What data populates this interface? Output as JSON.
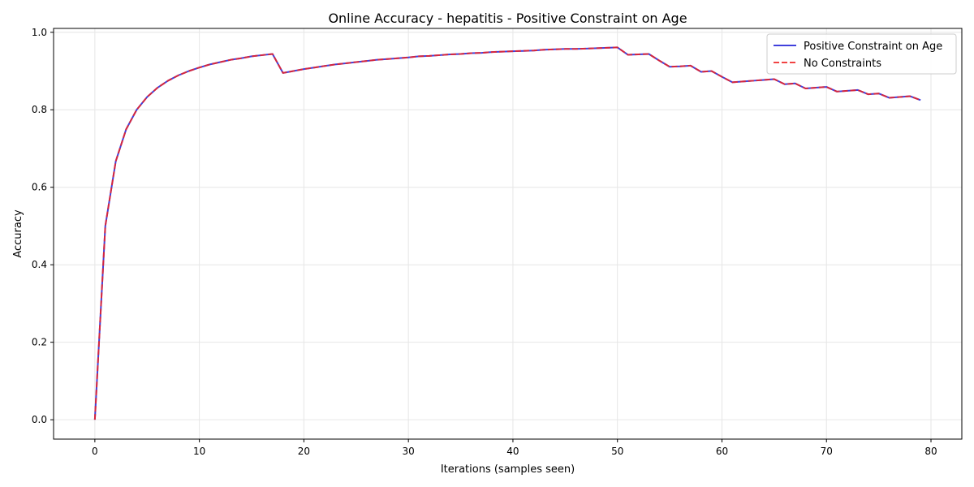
{
  "chart_data": {
    "type": "line",
    "title": "Online Accuracy - hepatitis - Positive Constraint on Age",
    "xlabel": "Iterations (samples seen)",
    "ylabel": "Accuracy",
    "xlim": [
      -3.95,
      82.95
    ],
    "ylim": [
      -0.05,
      1.01
    ],
    "xticks": [
      0,
      10,
      20,
      30,
      40,
      50,
      60,
      70,
      80
    ],
    "yticks": [
      0.0,
      0.2,
      0.4,
      0.6,
      0.8,
      1.0
    ],
    "xtick_labels": [
      "0",
      "10",
      "20",
      "30",
      "40",
      "50",
      "60",
      "70",
      "80"
    ],
    "ytick_labels": [
      "0.0",
      "0.2",
      "0.4",
      "0.6",
      "0.8",
      "1.0"
    ],
    "grid": true,
    "legend_position": "top-right",
    "x": [
      0,
      1,
      2,
      3,
      4,
      5,
      6,
      7,
      8,
      9,
      10,
      11,
      12,
      13,
      14,
      15,
      16,
      17,
      18,
      19,
      20,
      21,
      22,
      23,
      24,
      25,
      26,
      27,
      28,
      29,
      30,
      31,
      32,
      33,
      34,
      35,
      36,
      37,
      38,
      39,
      40,
      41,
      42,
      43,
      44,
      45,
      46,
      47,
      48,
      49,
      50,
      51,
      52,
      53,
      54,
      55,
      56,
      57,
      58,
      59,
      60,
      61,
      62,
      63,
      64,
      65,
      66,
      67,
      68,
      69,
      70,
      71,
      72,
      73,
      74,
      75,
      76,
      77,
      78,
      79
    ],
    "series": [
      {
        "name": "Positive Constraint on Age",
        "color": "#1f1fd6",
        "style": "solid",
        "values": [
          0.0,
          0.5,
          0.667,
          0.75,
          0.8,
          0.833,
          0.857,
          0.875,
          0.889,
          0.9,
          0.909,
          0.917,
          0.923,
          0.929,
          0.933,
          0.938,
          0.941,
          0.944,
          0.895,
          0.9,
          0.905,
          0.909,
          0.913,
          0.917,
          0.92,
          0.923,
          0.926,
          0.929,
          0.931,
          0.933,
          0.935,
          0.938,
          0.939,
          0.941,
          0.943,
          0.944,
          0.946,
          0.947,
          0.949,
          0.95,
          0.951,
          0.952,
          0.953,
          0.955,
          0.956,
          0.957,
          0.957,
          0.958,
          0.959,
          0.96,
          0.961,
          0.942,
          0.943,
          0.944,
          0.927,
          0.911,
          0.912,
          0.914,
          0.898,
          0.9,
          0.885,
          0.871,
          0.873,
          0.875,
          0.877,
          0.879,
          0.866,
          0.868,
          0.855,
          0.857,
          0.859,
          0.847,
          0.849,
          0.851,
          0.84,
          0.842,
          0.831,
          0.833,
          0.835,
          0.825
        ]
      },
      {
        "name": "No Constraints",
        "color": "#ee2222",
        "style": "dashed",
        "values": [
          0.0,
          0.5,
          0.667,
          0.75,
          0.8,
          0.833,
          0.857,
          0.875,
          0.889,
          0.9,
          0.909,
          0.917,
          0.923,
          0.929,
          0.933,
          0.938,
          0.941,
          0.944,
          0.895,
          0.9,
          0.905,
          0.909,
          0.913,
          0.917,
          0.92,
          0.923,
          0.926,
          0.929,
          0.931,
          0.933,
          0.935,
          0.938,
          0.939,
          0.941,
          0.943,
          0.944,
          0.946,
          0.947,
          0.949,
          0.95,
          0.951,
          0.952,
          0.953,
          0.955,
          0.956,
          0.957,
          0.957,
          0.958,
          0.959,
          0.96,
          0.961,
          0.942,
          0.943,
          0.944,
          0.927,
          0.911,
          0.912,
          0.914,
          0.898,
          0.9,
          0.885,
          0.871,
          0.873,
          0.875,
          0.877,
          0.879,
          0.866,
          0.868,
          0.855,
          0.857,
          0.859,
          0.847,
          0.849,
          0.851,
          0.84,
          0.842,
          0.831,
          0.833,
          0.835,
          0.825
        ]
      }
    ]
  }
}
